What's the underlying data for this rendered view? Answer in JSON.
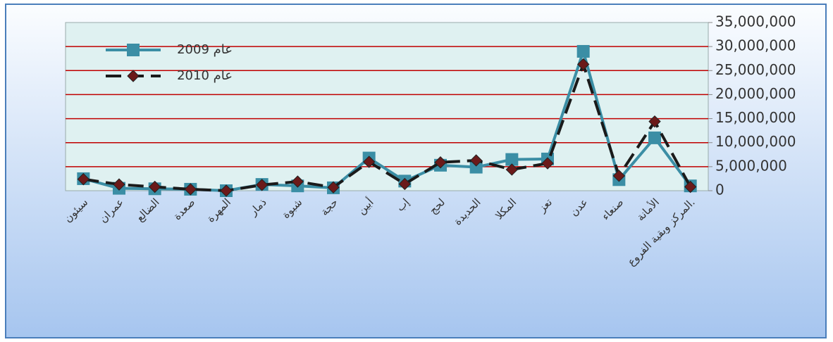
{
  "chart_data": {
    "type": "line",
    "categories": [
      "سيئون",
      "عمران",
      "الضالع",
      "صعدة",
      "المهرة",
      "ذمار",
      "شبوة",
      "حجة",
      "أبين",
      "إب",
      "لحج",
      "الحديدة",
      "المكلا",
      "تعز",
      "عدن",
      "صنعاء",
      "الأمانة",
      "المركز وبقية الفروع."
    ],
    "series": [
      {
        "name": "عام 2009",
        "color": "#3b8ea5",
        "marker": "square",
        "dash": false,
        "values": [
          2500000,
          500000,
          400000,
          300000,
          0,
          1300000,
          1000000,
          600000,
          6800000,
          2000000,
          5300000,
          4900000,
          6500000,
          6600000,
          29000000,
          2300000,
          11000000,
          1000000
        ]
      },
      {
        "name": "عام 2010",
        "color": "#1a1a1a",
        "marker": "diamond",
        "dash": true,
        "values": [
          2400000,
          1300000,
          800000,
          300000,
          0,
          1200000,
          1900000,
          700000,
          6000000,
          1400000,
          5900000,
          6300000,
          4400000,
          5700000,
          26300000,
          3100000,
          14400000,
          800000
        ]
      }
    ],
    "ylim": [
      0,
      35000000
    ],
    "yticks": [
      0,
      {
        "value": 5000000,
        "label": "5,000,000"
      },
      {
        "value": 10000000,
        "label": "10,000,000"
      },
      {
        "value": 15000000,
        "label": "15,000,000"
      },
      {
        "value": 20000000,
        "label": "20,000,000"
      },
      {
        "value": 25000000,
        "label": "25,000,000"
      },
      {
        "value": 30000000,
        "label": "30,000,000"
      },
      {
        "value": 35000000,
        "label": "35,000,000"
      }
    ],
    "grid": true,
    "grid_color": "#c00000",
    "legend": "upper left"
  }
}
